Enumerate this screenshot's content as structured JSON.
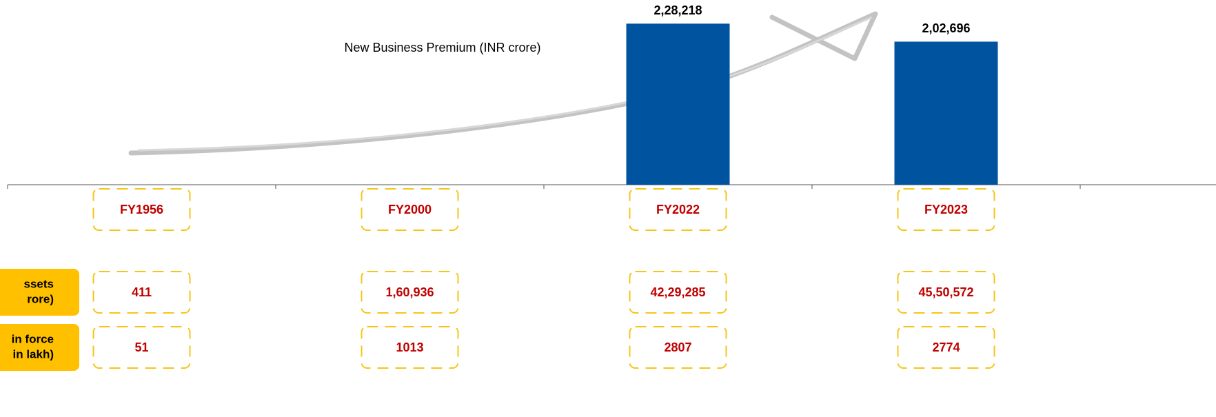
{
  "chart_data": {
    "type": "bar",
    "title": "New Business Premium (INR crore)",
    "categories": [
      "FY1956",
      "FY2000",
      "FY2022",
      "FY2023"
    ],
    "values": [
      null,
      null,
      228218,
      202696
    ],
    "value_labels": [
      null,
      null,
      "2,28,218",
      "2,02,696"
    ],
    "color": "#00539f",
    "ylim": [
      0,
      250000
    ]
  },
  "table": {
    "rows": [
      {
        "label_lines": [
          "ssets",
          "rore)"
        ],
        "values": [
          411,
          160936,
          4229285,
          4550572
        ],
        "value_labels": [
          "411",
          "1,60,936",
          "42,29,285",
          "45,50,572"
        ]
      },
      {
        "label_lines": [
          "in force",
          "in lakh)"
        ],
        "values": [
          51,
          1013,
          2807,
          2774
        ],
        "value_labels": [
          "51",
          "1013",
          "2807",
          "2774"
        ]
      }
    ]
  }
}
